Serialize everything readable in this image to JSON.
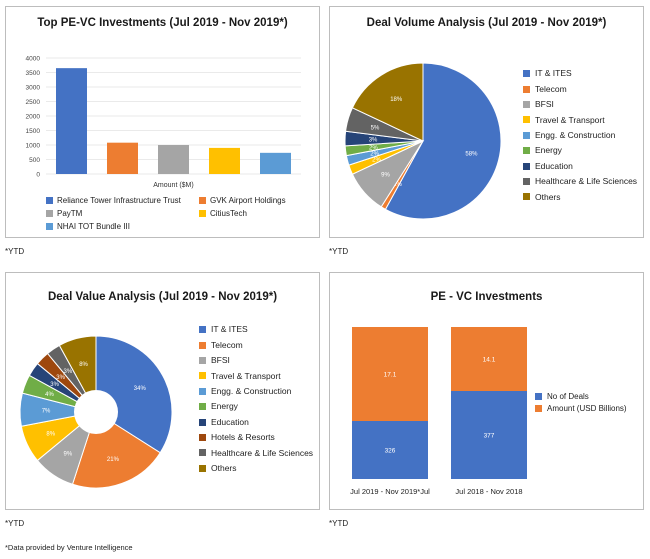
{
  "colors": {
    "blue": "#4472c4",
    "orange": "#ed7d31",
    "gray": "#a5a5a5",
    "yellow": "#ffc000",
    "lightblue": "#5b9bd5",
    "green": "#70ad47",
    "navy": "#264478",
    "rust": "#9e480e",
    "darkgray": "#636363",
    "olive": "#997300"
  },
  "footnote": "*Data provided by Venture Intelligence",
  "ytd_labels": [
    "*YTD",
    "*YTD",
    "*YTD",
    "*YTD"
  ],
  "chart_data": [
    {
      "type": "bar",
      "title": "Top PE-VC Investments (Jul 2019 - Nov 2019*)",
      "xlabel": "Amount ($M)",
      "ylim": [
        0,
        4000
      ],
      "yticks": [
        0,
        500,
        1000,
        1500,
        2000,
        2500,
        3000,
        3500,
        4000
      ],
      "categories": [
        "Reliance Tower Infrastructure Trust",
        "GVK Airport Holdings",
        "PayTM",
        "CitiusTech",
        "NHAI TOT Bundle III"
      ],
      "values": [
        3650,
        1080,
        1000,
        900,
        730
      ],
      "colors": [
        "#4472c4",
        "#ed7d31",
        "#a5a5a5",
        "#ffc000",
        "#5b9bd5"
      ]
    },
    {
      "type": "pie",
      "title": "Deal Volume Analysis (Jul 2019 - Nov 2019*)",
      "labels": [
        "IT & ITES",
        "Telecom",
        "BFSI",
        "Travel & Transport",
        "Engg. & Construction",
        "Energy",
        "Education",
        "Healthcare & Life Sciences",
        "Others"
      ],
      "values": [
        58,
        1,
        9,
        2,
        2,
        2,
        3,
        5,
        18
      ],
      "value_labels": [
        "58%",
        "1%",
        "9%",
        "2%",
        "2%",
        "2%",
        "3%",
        "5%",
        "18%"
      ],
      "colors": [
        "#4472c4",
        "#ed7d31",
        "#a5a5a5",
        "#ffc000",
        "#5b9bd5",
        "#70ad47",
        "#264478",
        "#636363",
        "#997300"
      ]
    },
    {
      "type": "pie",
      "donut": true,
      "title": "Deal Value Analysis (Jul 2019 - Nov 2019*)",
      "labels": [
        "IT & ITES",
        "Telecom",
        "BFSI",
        "Travel & Transport",
        "Engg. & Construction",
        "Energy",
        "Education",
        "Hotels & Resorts",
        "Healthcare & Life Sciences",
        "Others"
      ],
      "values": [
        34,
        21,
        9,
        8,
        7,
        4,
        3,
        3,
        3,
        8
      ],
      "value_labels": [
        "34%",
        "21%",
        "9%",
        "8%",
        "7%",
        "4%",
        "3%",
        "3%",
        "3%",
        "8%"
      ],
      "colors": [
        "#4472c4",
        "#ed7d31",
        "#a5a5a5",
        "#ffc000",
        "#5b9bd5",
        "#70ad47",
        "#264478",
        "#9e480e",
        "#636363",
        "#997300"
      ]
    },
    {
      "type": "bar",
      "stacked": true,
      "title": "PE - VC Investments",
      "categories": [
        "Jul 2019 - Nov 2019*Jul",
        "Jul 2018 - Nov 2018"
      ],
      "series": [
        {
          "name": "No of Deals",
          "values": [
            326,
            377
          ],
          "labels": [
            "326",
            "377"
          ],
          "color": "#4472c4"
        },
        {
          "name": "Amount (USD Billions)",
          "values": [
            17.1,
            14.1
          ],
          "labels": [
            "17.1",
            "14.1"
          ],
          "color": "#ed7d31"
        }
      ]
    }
  ]
}
